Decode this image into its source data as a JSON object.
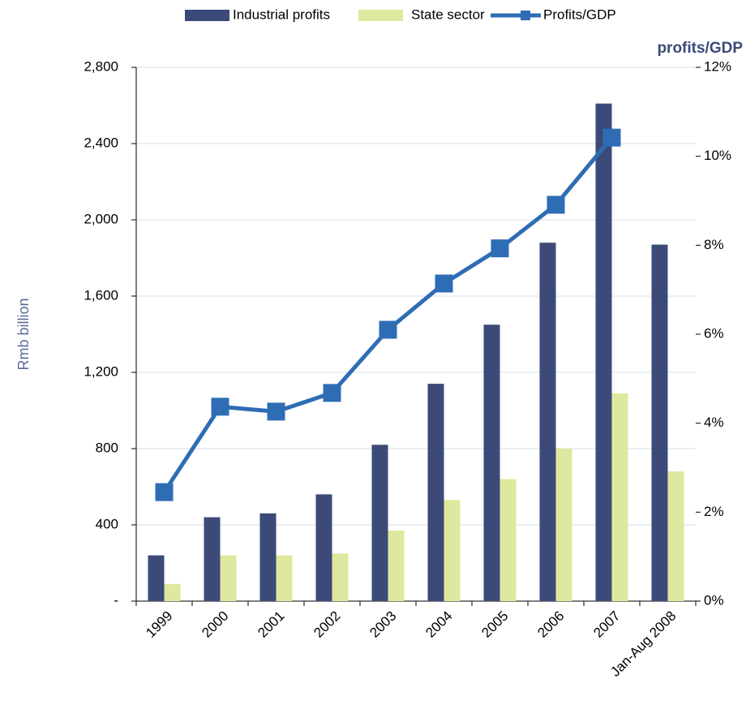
{
  "chart_data": {
    "type": "bar",
    "y2_title": "profits/GDP",
    "ylabel": "Rmb billion",
    "categories": [
      "1999",
      "2000",
      "2001",
      "2002",
      "2003",
      "2004",
      "2005",
      "2006",
      "2007",
      "Jan-Aug 2008"
    ],
    "series": [
      {
        "name": "Industrial profits",
        "type": "bar",
        "color": "#3b4a78",
        "values": [
          240,
          440,
          460,
          560,
          820,
          1140,
          1450,
          1880,
          2610,
          1870
        ]
      },
      {
        "name": "State sector",
        "type": "bar",
        "color": "#dfe89f",
        "values": [
          90,
          240,
          240,
          250,
          370,
          530,
          640,
          800,
          1090,
          680
        ]
      },
      {
        "name": "Profits/GDP",
        "type": "line",
        "axis": "y2",
        "color": "#2e6db4",
        "values": [
          2.45,
          4.37,
          4.26,
          4.68,
          6.1,
          7.14,
          7.93,
          8.91,
          10.42,
          null
        ]
      }
    ],
    "ylim": [
      0,
      2800
    ],
    "yticks": [
      {
        "value": 0,
        "label": "-"
      },
      {
        "value": 400,
        "label": "400"
      },
      {
        "value": 800,
        "label": "800"
      },
      {
        "value": 1200,
        "label": "1,200"
      },
      {
        "value": 1600,
        "label": "1,600"
      },
      {
        "value": 2000,
        "label": "2,000"
      },
      {
        "value": 2400,
        "label": "2,400"
      },
      {
        "value": 2800,
        "label": "2,800"
      }
    ],
    "y2lim": [
      0,
      12
    ],
    "y2ticks": [
      {
        "value": 0,
        "label": "0%"
      },
      {
        "value": 2,
        "label": "2%"
      },
      {
        "value": 4,
        "label": "4%"
      },
      {
        "value": 6,
        "label": "6%"
      },
      {
        "value": 8,
        "label": "8%"
      },
      {
        "value": 10,
        "label": "10%"
      },
      {
        "value": 12,
        "label": "12%"
      }
    ],
    "grid": true
  }
}
